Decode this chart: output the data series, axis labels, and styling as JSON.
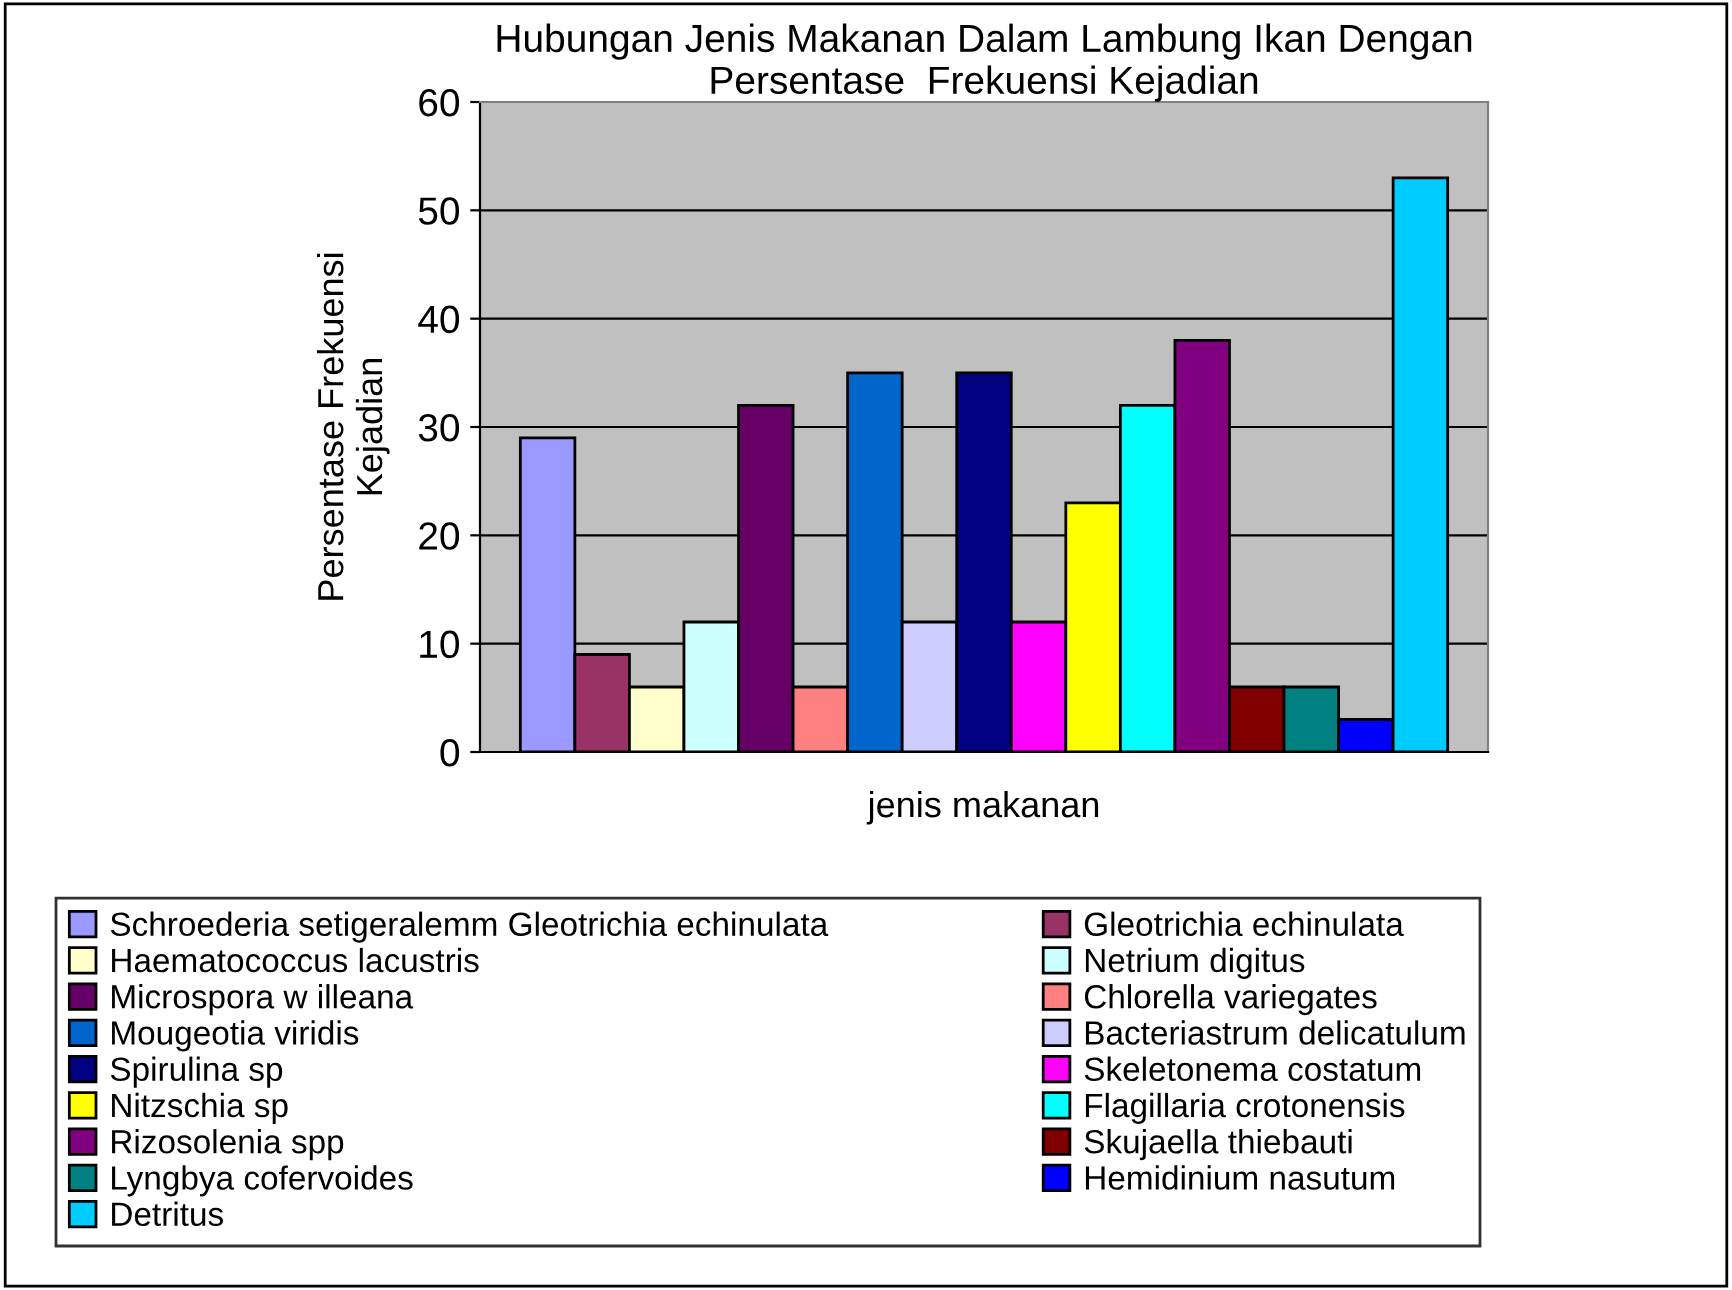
{
  "chart_data": {
    "type": "bar",
    "title": "Hubungan Jenis Makanan Dalam Lambung Ikan Dengan\nPersentase  Frekuensi Kejadian",
    "xlabel": "jenis makanan",
    "ylabel": "Persentase Frekuensi\nKejadian",
    "categories": [
      null
    ],
    "series": [
      {
        "name": "Schroederia setigeralemm Gleotrichia echinulata",
        "color": "#9999ff",
        "values": [
          29
        ]
      },
      {
        "name": "Gleotrichia echinulata",
        "color": "#993366",
        "values": [
          9
        ]
      },
      {
        "name": "Haematococcus lacustris",
        "color": "#ffffcc",
        "values": [
          6
        ]
      },
      {
        "name": "Netrium digitus",
        "color": "#ccffff",
        "values": [
          12
        ]
      },
      {
        "name": "Microspora w illeana",
        "color": "#660066",
        "values": [
          32
        ]
      },
      {
        "name": "Chlorella variegates",
        "color": "#ff8080",
        "values": [
          6
        ]
      },
      {
        "name": "Mougeotia viridis",
        "color": "#0066cc",
        "values": [
          35
        ]
      },
      {
        "name": "Bacteriastrum delicatulum",
        "color": "#ccccff",
        "values": [
          12
        ]
      },
      {
        "name": "Spirulina sp",
        "color": "#000080",
        "values": [
          35
        ]
      },
      {
        "name": "Skeletonema costatum",
        "color": "#ff00ff",
        "values": [
          12
        ]
      },
      {
        "name": "Nitzschia sp",
        "color": "#ffff00",
        "values": [
          23
        ]
      },
      {
        "name": "Flagillaria crotonensis",
        "color": "#00ffff",
        "values": [
          32
        ]
      },
      {
        "name": "Rizosolenia spp",
        "color": "#800080",
        "values": [
          38
        ]
      },
      {
        "name": "Skujaella thiebauti",
        "color": "#800000",
        "values": [
          6
        ]
      },
      {
        "name": "Lyngbya cofervoides",
        "color": "#008080",
        "values": [
          6
        ]
      },
      {
        "name": "Hemidinium nasutum",
        "color": "#0000ff",
        "values": [
          3
        ]
      },
      {
        "name": "Detritus",
        "color": "#00ccff",
        "values": [
          53
        ]
      }
    ],
    "ylim": [
      0,
      60
    ],
    "yticks": [
      0,
      10,
      20,
      30,
      40,
      50,
      60
    ],
    "grid": "y",
    "legend": "bottom",
    "tick_labels": "y"
  }
}
